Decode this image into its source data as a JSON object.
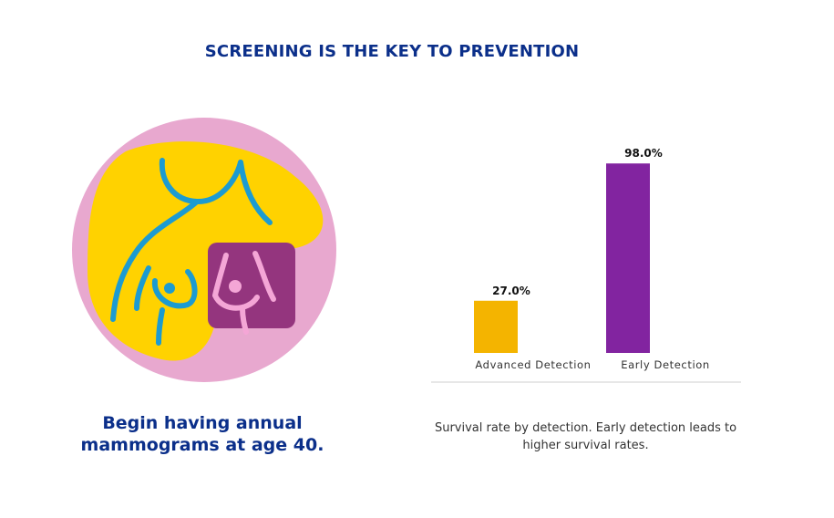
{
  "title": "SCREENING IS THE KEY TO PREVENTION",
  "left_caption": "Begin having annual mammograms at age 40.",
  "illustration": {
    "icon": "breast-self-exam-icon",
    "colors": {
      "circle": "#e8a8cf",
      "blob": "#ffd200",
      "line": "#1c9bd1",
      "square": "#94357e",
      "square_line": "#f4a6d6"
    }
  },
  "chart_data": {
    "type": "bar",
    "title": "",
    "xlabel": "",
    "ylabel": "",
    "categories": [
      "Advanced Detection",
      "Early Detection"
    ],
    "values": [
      27.0,
      98.0
    ],
    "value_labels": [
      "27.0%",
      "98.0%"
    ],
    "colors": [
      "#f4b400",
      "#8224a0"
    ],
    "ylim": [
      0,
      100
    ],
    "grid": false
  },
  "right_caption": "Survival rate by detection.  Early detection leads to higher survival rates."
}
